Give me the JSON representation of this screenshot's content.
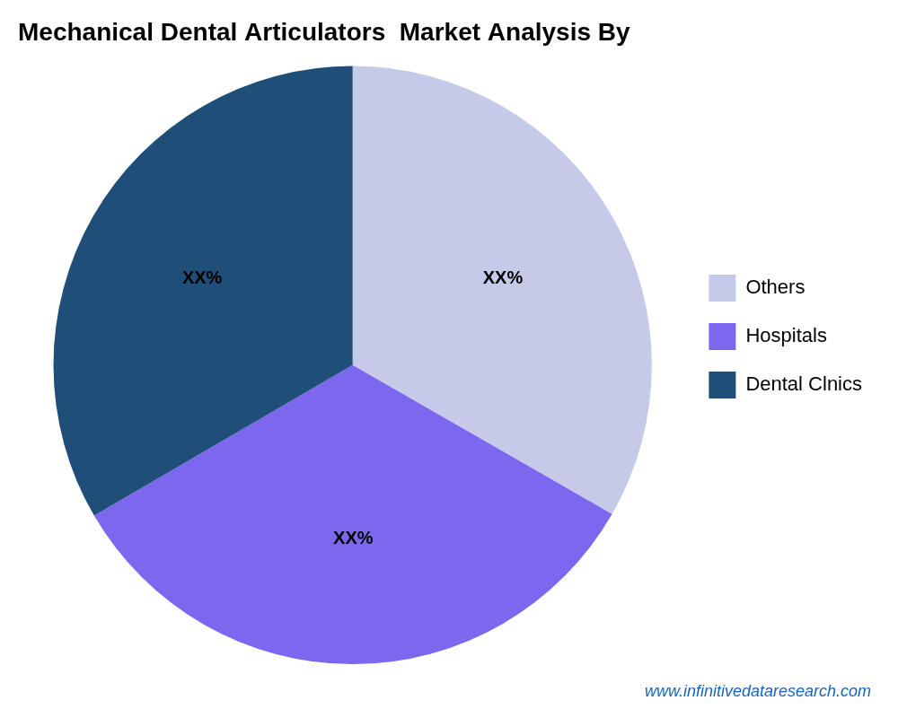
{
  "chart_data": {
    "type": "pie",
    "title": "Mechanical Dental Articulators  Market Analysis By",
    "categories": [
      "Others",
      "Hospitals",
      "Dental Clnics"
    ],
    "values": [
      33.3,
      33.3,
      33.4
    ],
    "colors": [
      "#C5CAE9",
      "#7B68EE",
      "#1F4E79"
    ],
    "data_labels": true,
    "value_labels": [
      "XX%",
      "XX%",
      "XX%"
    ],
    "legend": "right",
    "annotations": [
      {
        "text": "www.infinitivedataresearch.com",
        "color": "#1565C0"
      }
    ]
  }
}
